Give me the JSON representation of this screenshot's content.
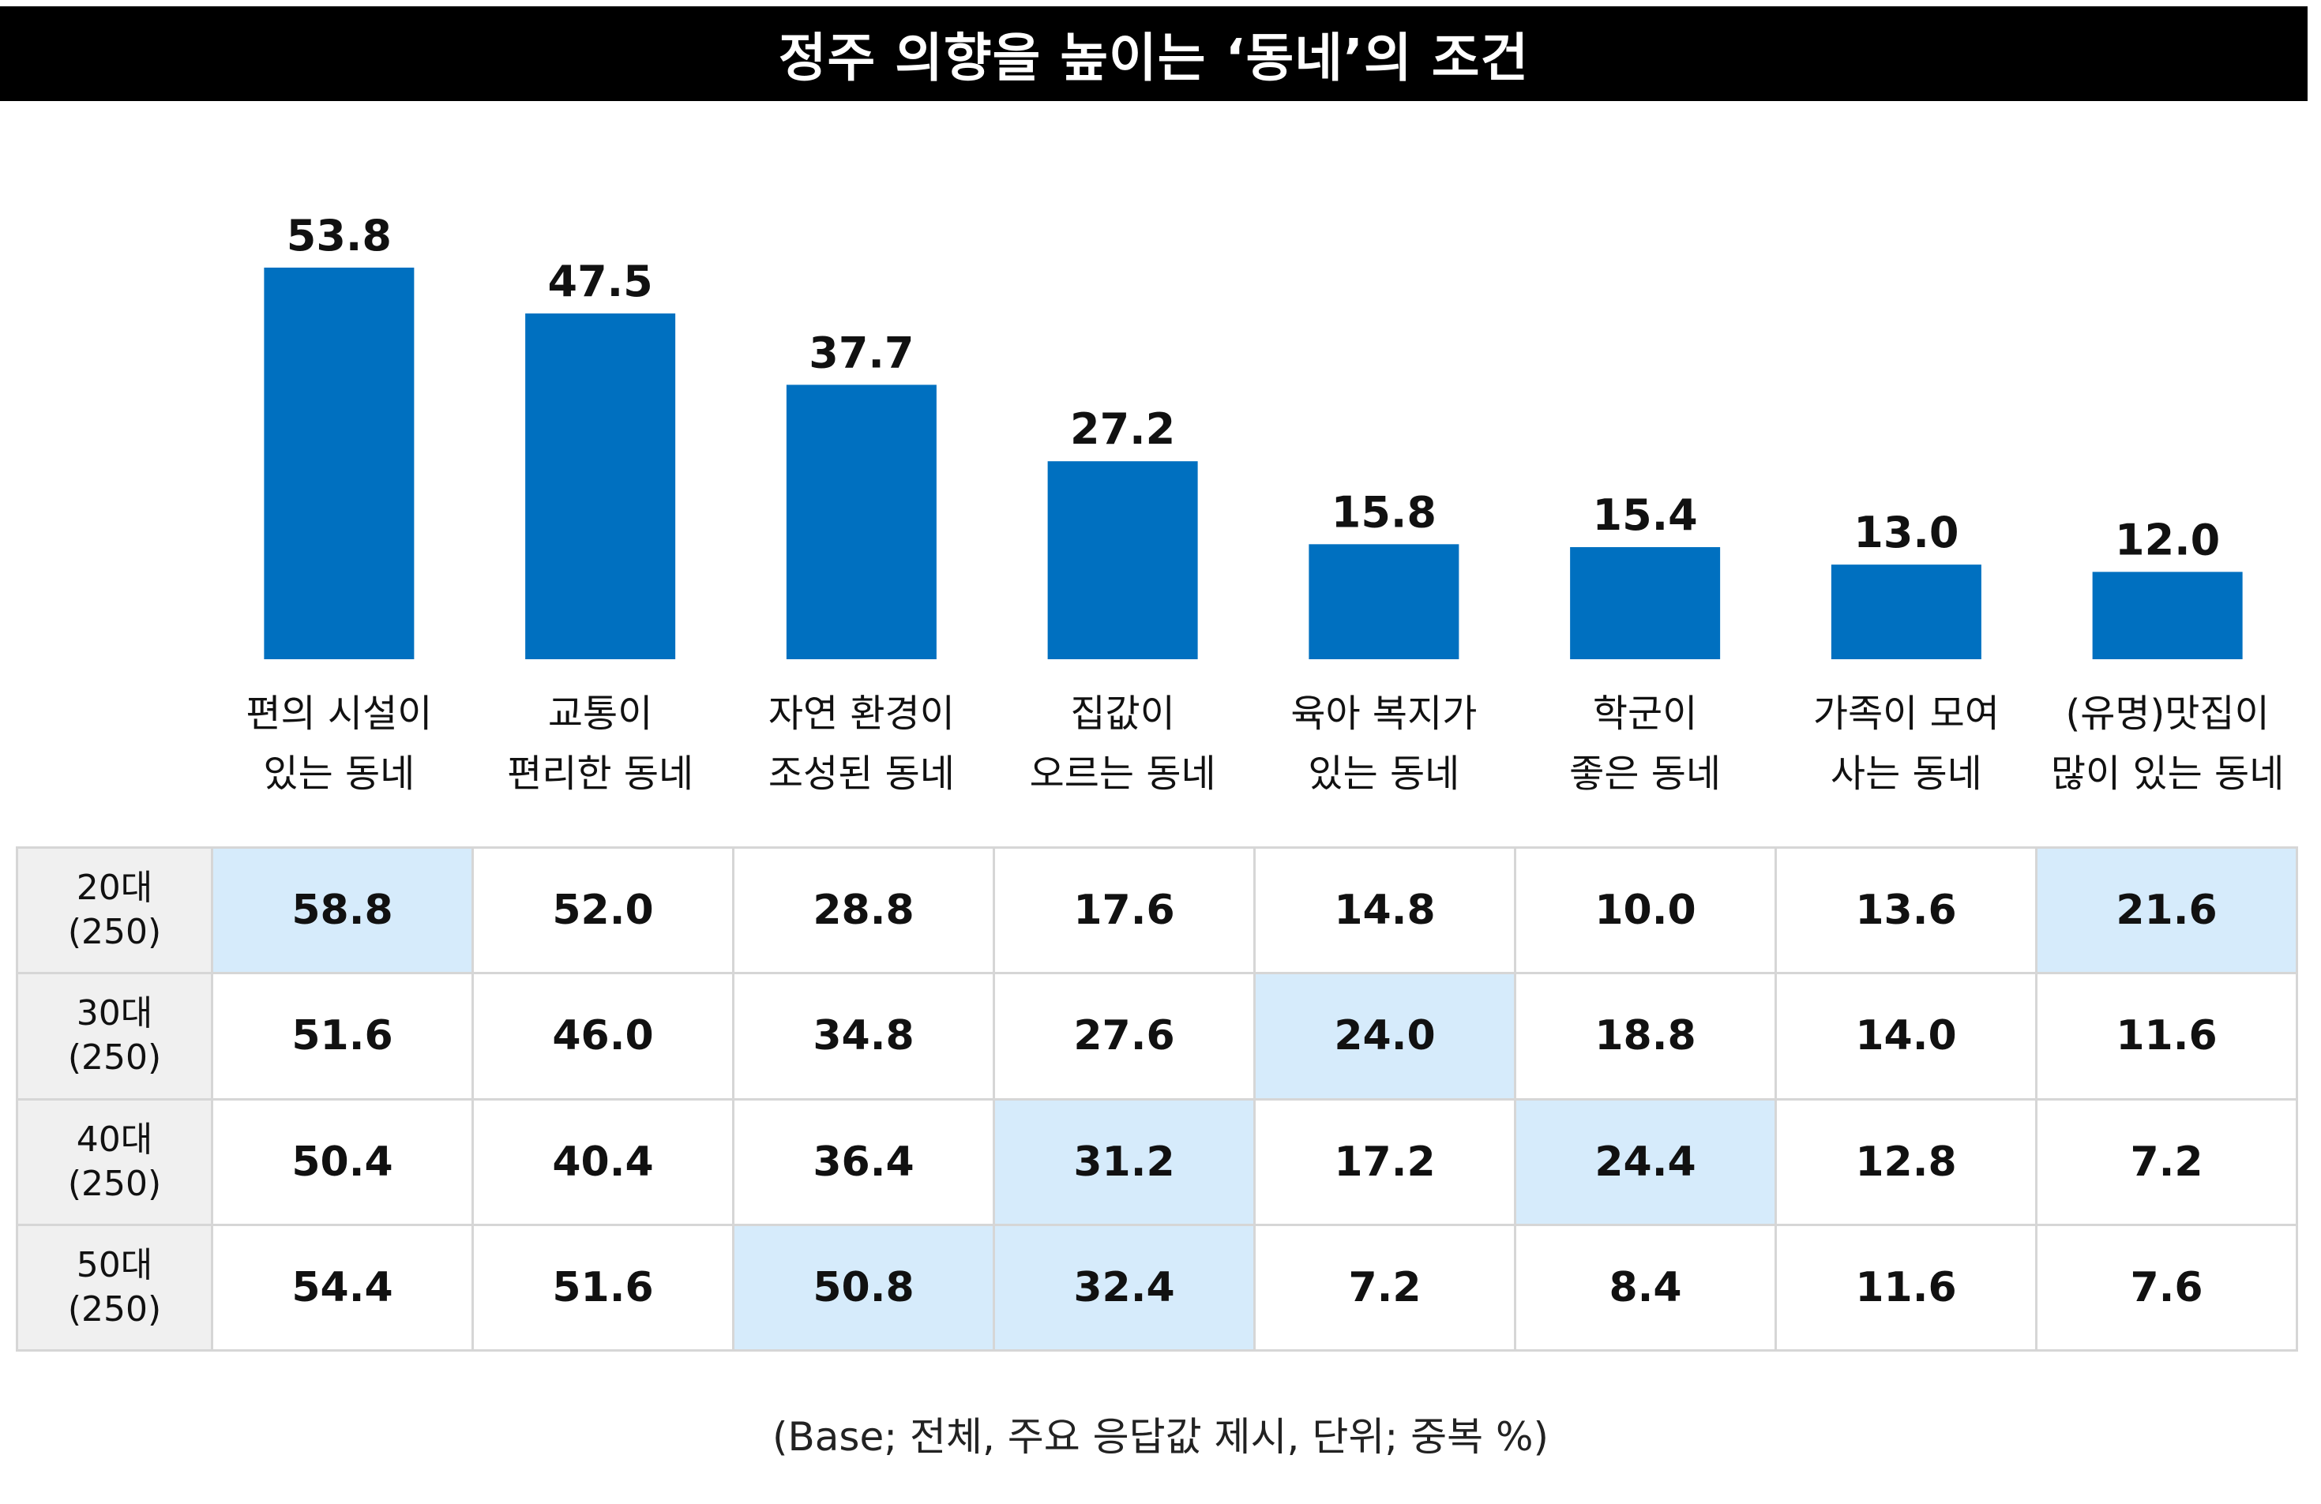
{
  "title": "정주 의향을 높이는 ‘동네’의 조건",
  "colors": {
    "bar": "#0070C0",
    "highlight": "#D6EBFB",
    "title_bg": "#000000",
    "row_head_bg": "#F0F0F0"
  },
  "chart_data": {
    "type": "bar",
    "title": "정주 의향을 높이는 ‘동네’의 조건",
    "categories": [
      [
        "편의 시설이",
        "있는 동네"
      ],
      [
        "교통이",
        "편리한 동네"
      ],
      [
        "자연 환경이",
        "조성된 동네"
      ],
      [
        "집값이",
        "오르는 동네"
      ],
      [
        "육아 복지가",
        "있는 동네"
      ],
      [
        "학군이",
        "좋은 동네"
      ],
      [
        "가족이 모여",
        "사는 동네"
      ],
      [
        "(유명)맛집이",
        "많이 있는 동네"
      ]
    ],
    "values": [
      53.8,
      47.5,
      37.7,
      27.2,
      15.8,
      15.4,
      13.0,
      12.0
    ],
    "value_labels": [
      "53.8",
      "47.5",
      "37.7",
      "27.2",
      "15.8",
      "15.4",
      "13.0",
      "12.0"
    ],
    "ylim": [
      0,
      60
    ],
    "grid": false,
    "xlabel": "",
    "ylabel": ""
  },
  "table": {
    "rows": [
      {
        "label": [
          "20대",
          "(250)"
        ],
        "values": [
          "58.8",
          "52.0",
          "28.8",
          "17.6",
          "14.8",
          "10.0",
          "13.6",
          "21.6"
        ],
        "highlight": [
          0,
          7
        ]
      },
      {
        "label": [
          "30대",
          "(250)"
        ],
        "values": [
          "51.6",
          "46.0",
          "34.8",
          "27.6",
          "24.0",
          "18.8",
          "14.0",
          "11.6"
        ],
        "highlight": [
          4
        ]
      },
      {
        "label": [
          "40대",
          "(250)"
        ],
        "values": [
          "50.4",
          "40.4",
          "36.4",
          "31.2",
          "17.2",
          "24.4",
          "12.8",
          "7.2"
        ],
        "highlight": [
          3,
          5
        ]
      },
      {
        "label": [
          "50대",
          "(250)"
        ],
        "values": [
          "54.4",
          "51.6",
          "50.8",
          "32.4",
          "7.2",
          "8.4",
          "11.6",
          "7.6"
        ],
        "highlight": [
          2,
          3
        ]
      }
    ]
  },
  "footnote": "(Base; 전체, 주요 응답값 제시, 단위; 중복 %)"
}
